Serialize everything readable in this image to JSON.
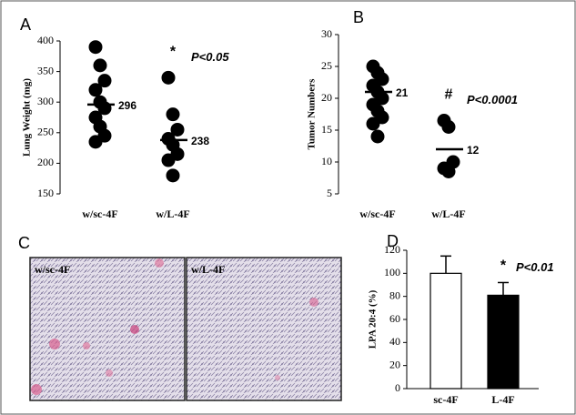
{
  "chart_data": [
    {
      "type": "dot",
      "panel": "A",
      "ylabel": "Lung Weight (mg)",
      "categories": [
        "w/sc-4F",
        "w/L-4F"
      ],
      "points": [
        [
          390,
          360,
          335,
          320,
          300,
          290,
          275,
          260,
          245,
          235
        ],
        [
          340,
          280,
          255,
          240,
          230,
          215,
          205,
          180
        ]
      ],
      "means": [
        296,
        238
      ],
      "annotation": "*",
      "pvalue": "P<0.05",
      "ylim": [
        150,
        400
      ],
      "yticks": [
        150,
        200,
        250,
        300,
        350,
        400
      ]
    },
    {
      "type": "dot",
      "panel": "B",
      "ylabel": "Tumor Numbers",
      "categories": [
        "w/sc-4F",
        "w/L-4F"
      ],
      "points": [
        [
          25,
          24,
          23,
          22,
          21,
          20,
          19,
          18,
          17,
          16,
          14
        ],
        [
          16.5,
          15.5,
          10,
          9,
          8.5
        ]
      ],
      "means": [
        21,
        12
      ],
      "annotation": "#",
      "pvalue": "P<0.0001",
      "ylim": [
        5,
        30
      ],
      "yticks": [
        5,
        10,
        15,
        20,
        25,
        30
      ]
    },
    {
      "type": "bar",
      "panel": "D",
      "ylabel": "LPA 20:4 (%)",
      "categories": [
        "sc-4F",
        "L-4F"
      ],
      "values": [
        100,
        81
      ],
      "errors": [
        15,
        11
      ],
      "colors": [
        "#ffffff",
        "#000000"
      ],
      "annotation": "*",
      "pvalue": "P<0.01",
      "ylim": [
        0,
        120
      ],
      "yticks": [
        0,
        20,
        40,
        60,
        80,
        100,
        120
      ]
    }
  ],
  "panel_c": {
    "panel": "C",
    "labels": [
      "w/sc-4F",
      "w/L-4F"
    ]
  }
}
